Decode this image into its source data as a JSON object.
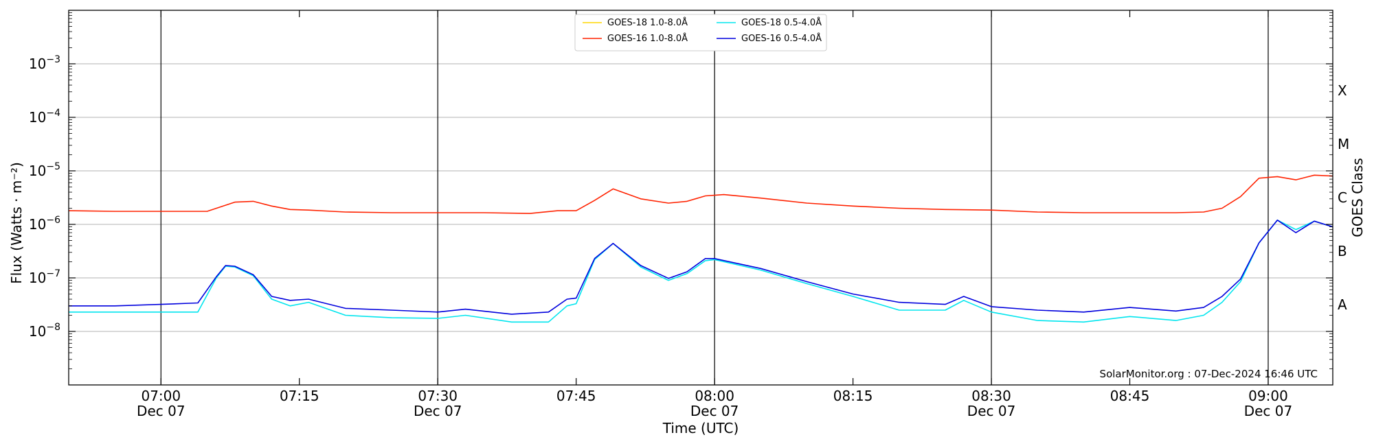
{
  "chart_data": {
    "type": "line",
    "xlabel": "Time (UTC)",
    "ylabel": "Flux (Watts · m⁻²)",
    "ylabel_right": "GOES Class",
    "yscale": "log",
    "ylim": [
      1e-09,
      0.01
    ],
    "xlim": [
      "2024-12-07 06:50",
      "2024-12-07 09:07"
    ],
    "y_ticks": [
      {
        "value": 1e-08,
        "base": "10",
        "exp": "−8"
      },
      {
        "value": 1e-07,
        "base": "10",
        "exp": "−7"
      },
      {
        "value": 1e-06,
        "base": "10",
        "exp": "−6"
      },
      {
        "value": 1e-05,
        "base": "10",
        "exp": "−5"
      },
      {
        "value": 0.0001,
        "base": "10",
        "exp": "−4"
      },
      {
        "value": 0.001,
        "base": "10",
        "exp": "−3"
      }
    ],
    "x_ticks": [
      {
        "time": "07:00",
        "line1": "07:00",
        "line2": "Dec 07",
        "day_boundary_line": true
      },
      {
        "time": "07:15",
        "line1": "07:15",
        "line2": "",
        "day_boundary_line": false
      },
      {
        "time": "07:30",
        "line1": "07:30",
        "line2": "Dec 07",
        "day_boundary_line": true
      },
      {
        "time": "07:45",
        "line1": "07:45",
        "line2": "",
        "day_boundary_line": false
      },
      {
        "time": "08:00",
        "line1": "08:00",
        "line2": "Dec 07",
        "day_boundary_line": true
      },
      {
        "time": "08:15",
        "line1": "08:15",
        "line2": "",
        "day_boundary_line": false
      },
      {
        "time": "08:30",
        "line1": "08:30",
        "line2": "Dec 07",
        "day_boundary_line": true
      },
      {
        "time": "08:45",
        "line1": "08:45",
        "line2": "",
        "day_boundary_line": false
      },
      {
        "time": "09:00",
        "line1": "09:00",
        "line2": "Dec 07",
        "day_boundary_line": true
      }
    ],
    "goes_classes": [
      {
        "label": "A",
        "value": 1e-08
      },
      {
        "label": "B",
        "value": 1e-07
      },
      {
        "label": "C",
        "value": 1e-06
      },
      {
        "label": "M",
        "value": 1e-05
      },
      {
        "label": "X",
        "value": 0.0001
      }
    ],
    "grid": "horizontal",
    "legend_position": "top-center",
    "legend": [
      {
        "name": "GOES-18 1.0-8.0Å",
        "color": "#ffd700"
      },
      {
        "name": "GOES-16 1.0-8.0Å",
        "color": "#ff2200"
      },
      {
        "name": "GOES-18 0.5-4.0Å",
        "color": "#00e5ee"
      },
      {
        "name": "GOES-16 0.5-4.0Å",
        "color": "#0000dd"
      }
    ],
    "credit": "SolarMonitor.org : 07-Dec-2024 16:46 UTC",
    "series": [
      {
        "name": "GOES-16 1.0-8.0Å",
        "color": "#ff2200",
        "x": [
          "06:50",
          "06:55",
          "07:00",
          "07:05",
          "07:08",
          "07:10",
          "07:12",
          "07:14",
          "07:16",
          "07:20",
          "07:25",
          "07:30",
          "07:35",
          "07:40",
          "07:43",
          "07:45",
          "07:47",
          "07:49",
          "07:52",
          "07:55",
          "07:57",
          "07:59",
          "08:01",
          "08:05",
          "08:10",
          "08:15",
          "08:20",
          "08:25",
          "08:30",
          "08:35",
          "08:40",
          "08:45",
          "08:50",
          "08:53",
          "08:55",
          "08:57",
          "08:59",
          "09:01",
          "09:03",
          "09:05",
          "09:07"
        ],
        "y": [
          1.8e-06,
          1.75e-06,
          1.75e-06,
          1.75e-06,
          2.6e-06,
          2.7e-06,
          2.2e-06,
          1.9e-06,
          1.85e-06,
          1.7e-06,
          1.65e-06,
          1.65e-06,
          1.65e-06,
          1.6e-06,
          1.8e-06,
          1.8e-06,
          2.8e-06,
          4.6e-06,
          3e-06,
          2.5e-06,
          2.7e-06,
          3.4e-06,
          3.6e-06,
          3.1e-06,
          2.5e-06,
          2.2e-06,
          2e-06,
          1.9e-06,
          1.85e-06,
          1.7e-06,
          1.65e-06,
          1.65e-06,
          1.65e-06,
          1.7e-06,
          2e-06,
          3.3e-06,
          7.3e-06,
          7.8e-06,
          6.8e-06,
          8.3e-06,
          8e-06
        ]
      },
      {
        "name": "GOES-18 0.5-4.0Å",
        "color": "#00e5ee",
        "x": [
          "06:50",
          "06:55",
          "07:00",
          "07:04",
          "07:06",
          "07:07",
          "07:08",
          "07:10",
          "07:12",
          "07:14",
          "07:16",
          "07:20",
          "07:25",
          "07:30",
          "07:33",
          "07:38",
          "07:42",
          "07:44",
          "07:45",
          "07:47",
          "07:49",
          "07:52",
          "07:55",
          "07:57",
          "07:59",
          "08:00",
          "08:05",
          "08:10",
          "08:15",
          "08:20",
          "08:25",
          "08:27",
          "08:30",
          "08:35",
          "08:40",
          "08:45",
          "08:50",
          "08:53",
          "08:55",
          "08:57",
          "08:59",
          "09:01",
          "09:03",
          "09:05",
          "09:07"
        ],
        "y": [
          2.3e-08,
          2.3e-08,
          2.3e-08,
          2.3e-08,
          1e-07,
          1.65e-07,
          1.6e-07,
          1.1e-07,
          4e-08,
          3e-08,
          3.5e-08,
          2e-08,
          1.8e-08,
          1.75e-08,
          2e-08,
          1.5e-08,
          1.5e-08,
          3e-08,
          3.3e-08,
          2.2e-07,
          4.4e-07,
          1.6e-07,
          9e-08,
          1.2e-07,
          2.1e-07,
          2.2e-07,
          1.4e-07,
          7.8e-08,
          4.5e-08,
          2.5e-08,
          2.5e-08,
          3.8e-08,
          2.3e-08,
          1.6e-08,
          1.5e-08,
          1.9e-08,
          1.6e-08,
          2e-08,
          3.5e-08,
          8.5e-08,
          4.5e-07,
          1.2e-06,
          8e-07,
          1.15e-06,
          9e-07
        ]
      },
      {
        "name": "GOES-16 0.5-4.0Å",
        "color": "#0000dd",
        "x": [
          "06:50",
          "06:55",
          "07:00",
          "07:04",
          "07:06",
          "07:07",
          "07:08",
          "07:10",
          "07:12",
          "07:14",
          "07:16",
          "07:20",
          "07:25",
          "07:30",
          "07:33",
          "07:38",
          "07:42",
          "07:44",
          "07:45",
          "07:47",
          "07:49",
          "07:52",
          "07:55",
          "07:57",
          "07:59",
          "08:00",
          "08:05",
          "08:10",
          "08:15",
          "08:20",
          "08:25",
          "08:27",
          "08:30",
          "08:35",
          "08:40",
          "08:45",
          "08:50",
          "08:53",
          "08:55",
          "08:57",
          "08:59",
          "09:01",
          "09:03",
          "09:05",
          "09:07"
        ],
        "y": [
          3e-08,
          3e-08,
          3.2e-08,
          3.4e-08,
          1.05e-07,
          1.7e-07,
          1.65e-07,
          1.15e-07,
          4.5e-08,
          3.8e-08,
          4e-08,
          2.7e-08,
          2.5e-08,
          2.3e-08,
          2.6e-08,
          2.1e-08,
          2.3e-08,
          4e-08,
          4.2e-08,
          2.3e-07,
          4.4e-07,
          1.7e-07,
          9.8e-08,
          1.3e-07,
          2.3e-07,
          2.3e-07,
          1.5e-07,
          8.5e-08,
          5e-08,
          3.5e-08,
          3.2e-08,
          4.5e-08,
          2.9e-08,
          2.5e-08,
          2.3e-08,
          2.8e-08,
          2.4e-08,
          2.8e-08,
          4.5e-08,
          9.5e-08,
          4.5e-07,
          1.2e-06,
          7e-07,
          1.15e-06,
          9e-07
        ]
      }
    ]
  }
}
